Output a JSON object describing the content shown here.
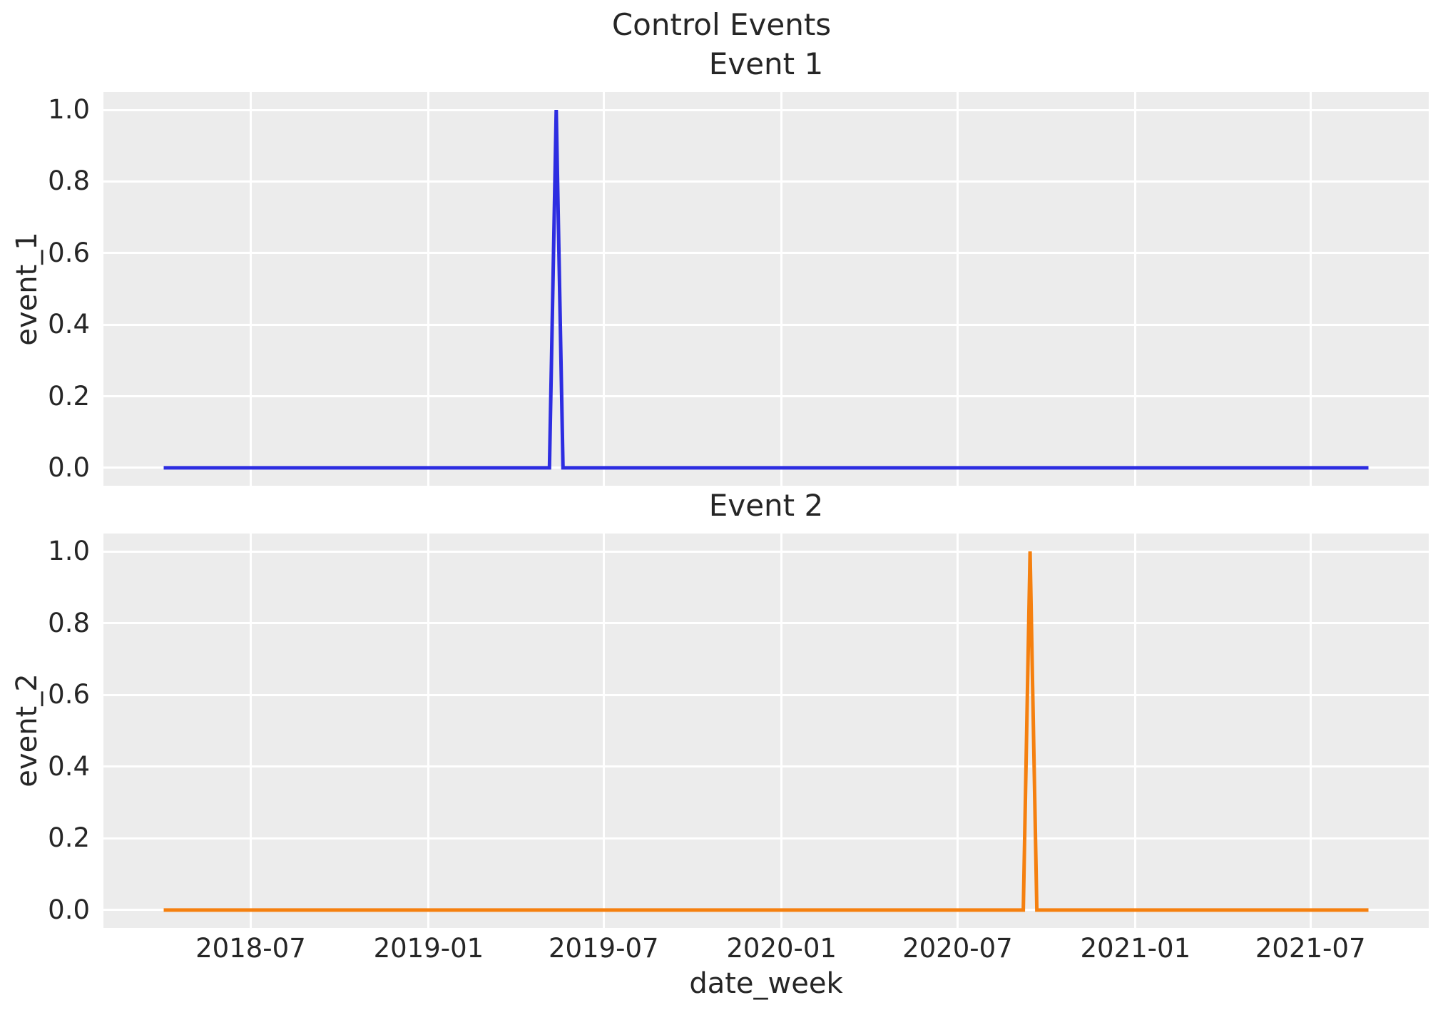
{
  "figure": {
    "suptitle": "Control Events",
    "background": "#ffffff",
    "axes_background": "#ececec",
    "grid_color": "#ffffff",
    "text_color": "#262626"
  },
  "x_axis": {
    "label": "date_week",
    "ticks": [
      {
        "label": "2018-07",
        "date": "2018-07-01"
      },
      {
        "label": "2019-01",
        "date": "2019-01-01"
      },
      {
        "label": "2019-07",
        "date": "2019-07-01"
      },
      {
        "label": "2020-01",
        "date": "2020-01-01"
      },
      {
        "label": "2020-07",
        "date": "2020-07-01"
      },
      {
        "label": "2021-01",
        "date": "2021-01-01"
      },
      {
        "label": "2021-07",
        "date": "2021-07-01"
      }
    ],
    "data_range": [
      "2018-04-02",
      "2021-08-30"
    ],
    "margin_frac": 0.05
  },
  "y_axis": {
    "tick_labels": [
      "0.0",
      "0.2",
      "0.4",
      "0.6",
      "0.8",
      "1.0"
    ],
    "tick_values": [
      0.0,
      0.2,
      0.4,
      0.6,
      0.8,
      1.0
    ],
    "ylim": [
      -0.05,
      1.05
    ]
  },
  "chart_data": [
    {
      "type": "line",
      "title": "Event 1",
      "ylabel": "event_1",
      "series_name": "event_1",
      "color": "#2d2de1",
      "line_width": 5,
      "grid": true,
      "x": [
        "2018-04-02",
        "2019-05-06",
        "2019-05-13",
        "2019-05-20",
        "2021-08-30"
      ],
      "y": [
        0,
        0,
        1,
        0,
        0
      ],
      "peak": {
        "date": "2019-05-13",
        "value": 1.0
      }
    },
    {
      "type": "line",
      "title": "Event 2",
      "ylabel": "event_2",
      "series_name": "event_2",
      "color": "#f5800f",
      "line_width": 5,
      "grid": true,
      "x": [
        "2018-04-02",
        "2020-09-07",
        "2020-09-14",
        "2020-09-21",
        "2021-08-30"
      ],
      "y": [
        0,
        0,
        1,
        0,
        0
      ],
      "peak": {
        "date": "2020-09-14",
        "value": 1.0
      }
    }
  ]
}
